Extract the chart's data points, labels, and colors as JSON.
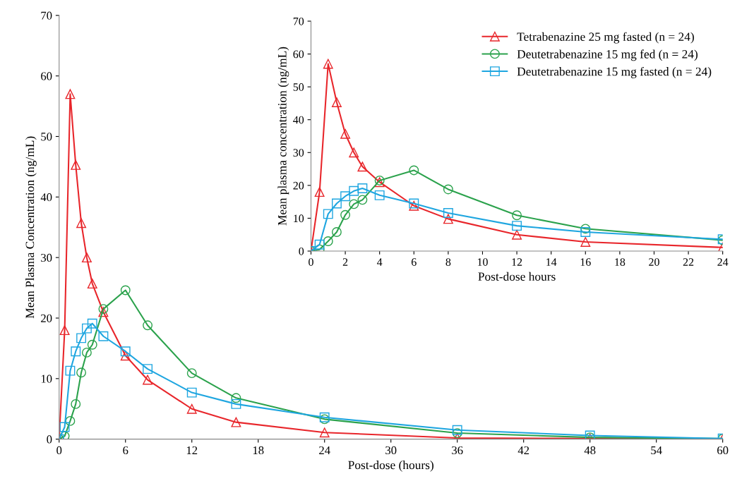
{
  "chart_data": [
    {
      "type": "line",
      "xlabel": "Post-dose (hours)",
      "ylabel": "Mean Plasma Concentration (ng/mL)",
      "xlim": [
        0,
        60
      ],
      "xticks": [
        0,
        6,
        12,
        18,
        24,
        30,
        36,
        42,
        48,
        54,
        60
      ],
      "ylim": [
        0,
        70
      ],
      "yticks": [
        0,
        10,
        20,
        30,
        40,
        50,
        60,
        70
      ],
      "grid": false,
      "legend": false,
      "line_style": "solid",
      "x": [
        0,
        0.5,
        1,
        1.5,
        2,
        2.5,
        3,
        4,
        6,
        8,
        12,
        16,
        24,
        36,
        48,
        60
      ],
      "series": [
        {
          "color": "#e8262b",
          "marker": "triangle",
          "values": [
            0,
            18,
            57,
            45.3,
            35.7,
            30,
            25.7,
            21,
            13.8,
            9.8,
            5,
            2.8,
            1.1,
            0.2,
            0.1,
            0
          ]
        },
        {
          "color": "#2ba24c",
          "marker": "circle",
          "values": [
            0,
            0.5,
            3,
            5.8,
            11,
            14.3,
            15.6,
            21.5,
            24.6,
            18.8,
            10.9,
            6.8,
            3.3,
            1,
            0.3,
            0.1
          ]
        },
        {
          "color": "#1fa6e0",
          "marker": "square",
          "values": [
            0,
            2,
            11.3,
            14.5,
            16.7,
            18.3,
            19.1,
            17,
            14.5,
            11.6,
            7.7,
            5.8,
            3.6,
            1.5,
            0.6,
            0.1
          ]
        }
      ]
    },
    {
      "type": "line",
      "xlabel": "Post-dose hours",
      "ylabel": "Mean plasma concentration (ng/mL)",
      "xlim": [
        0,
        24
      ],
      "xticks": [
        0,
        2,
        4,
        6,
        8,
        10,
        12,
        14,
        16,
        18,
        20,
        22,
        24
      ],
      "ylim": [
        0,
        70
      ],
      "yticks": [
        0,
        10,
        20,
        30,
        40,
        50,
        60,
        70
      ],
      "grid": false,
      "legend": "top right",
      "line_style": "solid",
      "x": [
        0,
        0.5,
        1,
        1.5,
        2,
        2.5,
        3,
        4,
        6,
        8,
        12,
        16,
        24
      ],
      "series": [
        {
          "name": "Tetrabenazine 25 mg fasted (n = 24)",
          "color": "#e8262b",
          "marker": "triangle",
          "values": [
            0,
            18,
            57,
            45.3,
            35.7,
            30,
            25.7,
            21,
            13.8,
            9.8,
            5,
            2.8,
            1.1
          ]
        },
        {
          "name": "Deutetrabenazine 15 mg fed (n = 24)",
          "color": "#2ba24c",
          "marker": "circle",
          "values": [
            0,
            0.5,
            3,
            5.8,
            11,
            14.3,
            15.6,
            21.5,
            24.6,
            18.8,
            10.9,
            6.8,
            3.3
          ]
        },
        {
          "name": "Deutetrabenazine 15 mg fasted (n = 24)",
          "color": "#1fa6e0",
          "marker": "square",
          "values": [
            0,
            2,
            11.3,
            14.5,
            16.7,
            18.3,
            19.1,
            17,
            14.5,
            11.6,
            7.7,
            5.8,
            3.6
          ]
        }
      ]
    }
  ]
}
